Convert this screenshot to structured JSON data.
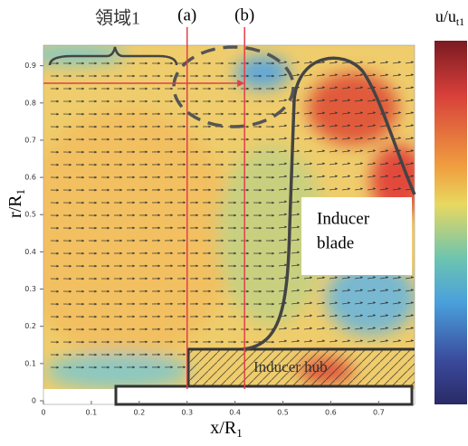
{
  "chart_data": {
    "type": "contour",
    "x_label": {
      "text": "x/R",
      "sub": "1"
    },
    "y_label": {
      "text": "r/R",
      "sub": "1"
    },
    "colorbar_label": {
      "text": "u/u",
      "sub": "t1"
    },
    "xlim": [
      0,
      0.775
    ],
    "ylim": [
      0,
      0.955
    ],
    "xticks": [
      0,
      0.1,
      0.2,
      0.3,
      0.4,
      0.5,
      0.6,
      0.7
    ],
    "yticks": [
      0,
      0.1,
      0.2,
      0.3,
      0.4,
      0.5,
      0.6,
      0.7,
      0.8,
      0.9
    ],
    "annotations": [
      {
        "label": "(a)",
        "x": 0.3
      },
      {
        "label": "(b)",
        "x": 0.42
      }
    ],
    "region_label": "領域1",
    "blade_label": [
      "Inducer",
      "blade"
    ],
    "hub_label": "Inducer hub"
  }
}
